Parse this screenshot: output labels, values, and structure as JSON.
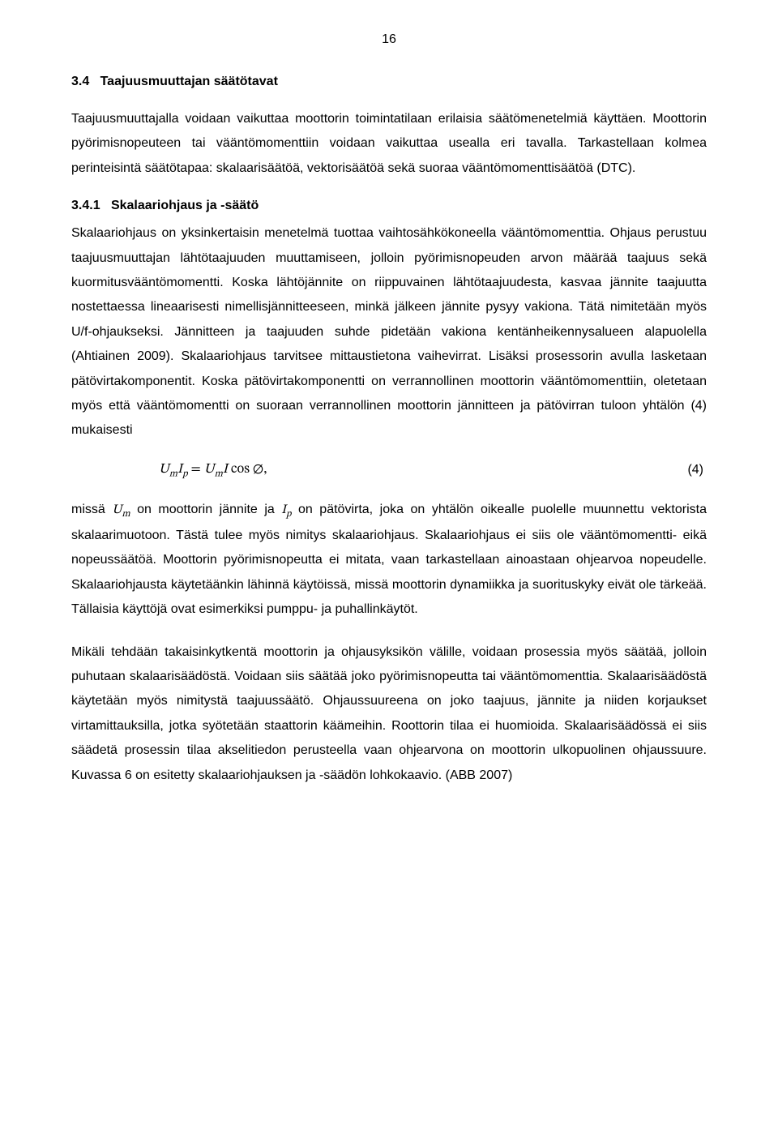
{
  "page": {
    "number": "16",
    "bg_color": "#ffffff",
    "text_color": "#000000",
    "font_family": "Arial",
    "body_font_size_pt": 12,
    "line_height": 1.9
  },
  "heading_section": {
    "number": "3.4",
    "title": "Taajuusmuuttajan säätötavat"
  },
  "para_intro": "Taajuusmuuttajalla voidaan vaikuttaa moottorin toimintatilaan erilaisia säätömenetelmiä käyttäen. Moottorin pyörimisnopeuteen tai vääntömomenttiin voidaan vaikuttaa usealla eri tavalla. Tarkastellaan kolmea perinteisintä säätötapaa: skalaarisäätöä, vektorisäätöä sekä suoraa vääntömomenttisäätöä (DTC).",
  "heading_subsection": {
    "number": "3.4.1",
    "title": "Skalaariohjaus ja -säätö"
  },
  "para_body1": "Skalaariohjaus on yksinkertaisin menetelmä tuottaa vaihtosähkökoneella vääntömomenttia. Ohjaus perustuu taajuusmuuttajan lähtötaajuuden muuttamiseen, jolloin pyörimisnopeuden arvon määrää taajuus sekä kuormitusvääntömomentti. Koska lähtöjännite on riippuvainen lähtötaajuudesta, kasvaa jännite taajuutta nostettaessa lineaarisesti nimellisjännitteeseen, minkä jälkeen jännite pysyy vakiona.  Tätä nimitetään myös U/f-ohjaukseksi. Jännitteen ja taajuuden suhde pidetään vakiona kentänheikennysalueen alapuolella (Ahtiainen 2009). Skalaariohjaus tarvitsee mittaustietona vaihevirrat. Lisäksi prosessorin avulla lasketaan pätövirtakomponentit. Koska pätövirtakomponentti on verrannollinen moottorin vääntömomenttiin, oletetaan myös että vääntömomentti on suoraan verrannollinen moottorin jännitteen ja pätövirran tuloon yhtälön (4) mukaisesti",
  "equation": {
    "label": "(4)",
    "expr_lhs_U": "U",
    "expr_lhs_Usub": "m",
    "expr_lhs_I": "I",
    "expr_lhs_Isub": "p",
    "expr_eq": " = ",
    "expr_rhs_U": "U",
    "expr_rhs_Usub": "m",
    "expr_rhs_I": "I",
    "expr_rhs_cos": " cos ∅,"
  },
  "para_body2_pre": "missä ",
  "para_body2_Um_U": "U",
  "para_body2_Um_sub": "m",
  "para_body2_mid1": " on moottorin jännite ja  ",
  "para_body2_Ip_I": "I",
  "para_body2_Ip_sub": "p",
  "para_body2_rest": " on pätövirta, joka on yhtälön oikealle puolelle muunnettu vektorista skalaarimuotoon. Tästä tulee myös nimitys skalaariohjaus. Skalaariohjaus ei siis ole vääntömomentti- eikä nopeussäätöä. Moottorin pyörimisnopeutta ei mitata, vaan tarkastellaan ainoastaan ohjearvoa nopeudelle. Skalaariohjausta käytetäänkin lähinnä käytöissä, missä moottorin dynamiikka ja suorituskyky eivät ole tärkeää. Tällaisia käyttöjä ovat esimerkiksi pumppu- ja puhallinkäytöt.",
  "para_body3": "Mikäli tehdään takaisinkytkentä moottorin ja ohjausyksikön välille, voidaan prosessia myös säätää, jolloin puhutaan skalaarisäädöstä. Voidaan siis säätää joko pyörimisnopeutta tai vääntömomenttia. Skalaarisäädöstä käytetään myös nimitystä taajuussäätö. Ohjaussuureena on joko taajuus, jännite ja niiden korjaukset virtamittauksilla, jotka syötetään staattorin käämeihin. Roottorin tilaa ei huomioida. Skalaarisäädössä ei siis säädetä prosessin tilaa akselitiedon perusteella vaan ohjearvona on moottorin ulkopuolinen ohjaussuure. Kuvassa 6 on esitetty skalaariohjauksen ja -säädön lohkokaavio. (ABB 2007)"
}
